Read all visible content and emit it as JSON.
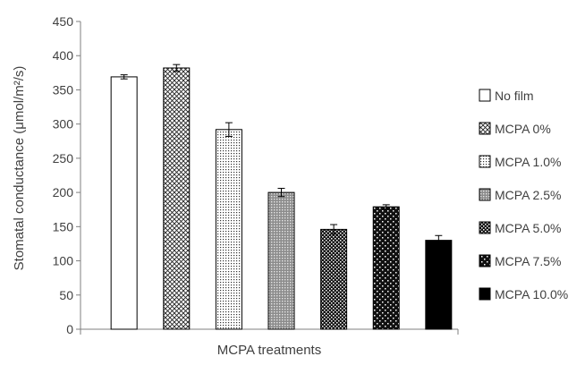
{
  "chart_data": {
    "type": "bar",
    "title": "",
    "xlabel": "MCPA treatments",
    "ylabel": "Stomatal conductance (μmol/m²/s)",
    "ylim": [
      0,
      450
    ],
    "yticks": [
      0,
      50,
      100,
      150,
      200,
      250,
      300,
      350,
      400,
      450
    ],
    "grid": false,
    "legend_position": "right",
    "series": [
      {
        "name": "No film",
        "value": 369,
        "error": 3,
        "pattern": "solid-white"
      },
      {
        "name": "MCPA 0%",
        "value": 382,
        "error": 5,
        "pattern": "crosshatch"
      },
      {
        "name": "MCPA 1.0%",
        "value": 292,
        "error": 10,
        "pattern": "fine-dots"
      },
      {
        "name": "MCPA 2.5%",
        "value": 200,
        "error": 6,
        "pattern": "grid-dots"
      },
      {
        "name": "MCPA 5.0%",
        "value": 146,
        "error": 7,
        "pattern": "dark-checker"
      },
      {
        "name": "MCPA 7.5%",
        "value": 179,
        "error": 3,
        "pattern": "dark-sparse-dots"
      },
      {
        "name": "MCPA 10.0%",
        "value": 130,
        "error": 7,
        "pattern": "solid-black"
      }
    ]
  }
}
